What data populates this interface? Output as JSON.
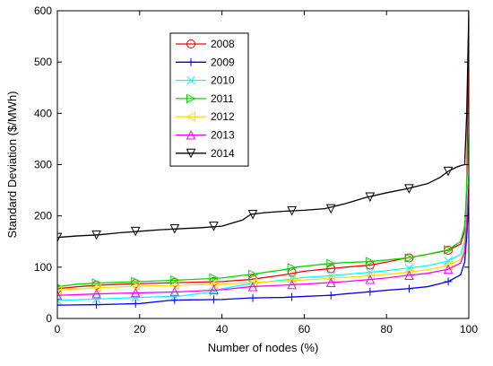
{
  "chart_data": {
    "type": "line",
    "title": "",
    "xlabel": "Number of nodes (%)",
    "ylabel": "Standard Deviation ($/MWh)",
    "xlim": [
      0,
      100
    ],
    "ylim": [
      0,
      600
    ],
    "xticks": [
      0,
      20,
      40,
      60,
      80,
      100
    ],
    "yticks": [
      0,
      100,
      200,
      300,
      400,
      500,
      600
    ],
    "grid": false,
    "legend_position": "top-left",
    "series": [
      {
        "name": "2008",
        "color": "#ff0000",
        "marker": "circle",
        "x": [
          0,
          5,
          10,
          20,
          30,
          40,
          47,
          55,
          60,
          66,
          70,
          76,
          80,
          85,
          90,
          95,
          98,
          99,
          99.5,
          100
        ],
        "y": [
          58,
          62,
          65,
          68,
          70,
          72,
          76,
          85,
          92,
          97,
          100,
          104,
          110,
          118,
          125,
          133,
          145,
          170,
          250,
          600
        ],
        "markers_x": [
          0,
          9.5,
          19,
          28.5,
          38,
          47.5,
          57,
          66.5,
          76,
          85.5,
          95
        ],
        "markers_y": [
          58,
          65,
          68,
          70,
          72,
          77,
          90,
          97,
          104,
          118,
          133
        ]
      },
      {
        "name": "2009",
        "color": "#0000ff",
        "marker": "plus",
        "x": [
          0,
          10,
          20,
          27,
          30,
          40,
          47,
          55,
          60,
          66,
          70,
          76,
          80,
          85,
          90,
          95,
          98,
          99,
          99.5,
          100
        ],
        "y": [
          26,
          27,
          29,
          35,
          36,
          37,
          40,
          41,
          43,
          45,
          48,
          52,
          55,
          58,
          62,
          72,
          85,
          110,
          160,
          230
        ],
        "markers_x": [
          0,
          9.5,
          19,
          28.5,
          38,
          47.5,
          57,
          66.5,
          76,
          85.5,
          95
        ],
        "markers_y": [
          26,
          27,
          29,
          36,
          37,
          40,
          42,
          45,
          52,
          58,
          72
        ]
      },
      {
        "name": "2010",
        "color": "#00ffff",
        "marker": "x",
        "x": [
          0,
          10,
          20,
          30,
          38,
          40,
          47,
          55,
          60,
          66,
          70,
          76,
          80,
          85,
          90,
          95,
          98,
          99,
          99.5,
          100
        ],
        "y": [
          35,
          38,
          41,
          44,
          52,
          58,
          68,
          75,
          80,
          83,
          86,
          90,
          93,
          98,
          103,
          112,
          125,
          150,
          210,
          280
        ],
        "markers_x": [
          0,
          9.5,
          19,
          28.5,
          38,
          47.5,
          57,
          66.5,
          76,
          85.5,
          95
        ],
        "markers_y": [
          35,
          38,
          41,
          44,
          52,
          68,
          78,
          83,
          90,
          98,
          112
        ]
      },
      {
        "name": "2011",
        "color": "#00dd00",
        "marker": "triangle-right",
        "x": [
          0,
          5,
          10,
          20,
          30,
          40,
          47,
          55,
          58,
          66,
          70,
          76,
          80,
          85,
          90,
          95,
          98,
          99,
          99.5,
          100
        ],
        "y": [
          62,
          67,
          69,
          72,
          75,
          79,
          86,
          95,
          100,
          107,
          109,
          111,
          114,
          118,
          125,
          134,
          150,
          180,
          260,
          360
        ],
        "markers_x": [
          0,
          9.5,
          19,
          28.5,
          38,
          47.5,
          57,
          66.5,
          76,
          85.5,
          95
        ],
        "markers_y": [
          62,
          69,
          72,
          75,
          79,
          86,
          99,
          107,
          111,
          118,
          134
        ]
      },
      {
        "name": "2012",
        "color": "#ffdd00",
        "marker": "triangle-left",
        "x": [
          0,
          10,
          20,
          30,
          40,
          47,
          55,
          60,
          66,
          70,
          76,
          80,
          85,
          90,
          95,
          98,
          99,
          99.5,
          100
        ],
        "y": [
          55,
          60,
          63,
          65,
          67,
          70,
          73,
          75,
          78,
          80,
          83,
          86,
          90,
          95,
          103,
          115,
          140,
          200,
          270
        ],
        "markers_x": [
          0,
          9.5,
          19,
          28.5,
          38,
          47.5,
          57,
          66.5,
          76,
          85.5,
          95
        ],
        "markers_y": [
          55,
          60,
          63,
          65,
          67,
          70,
          74,
          78,
          83,
          90,
          103
        ]
      },
      {
        "name": "2013",
        "color": "#ff00ff",
        "marker": "triangle-up",
        "x": [
          0,
          10,
          20,
          30,
          40,
          47,
          55,
          60,
          66,
          70,
          76,
          80,
          85,
          90,
          95,
          98,
          99,
          99.5,
          100
        ],
        "y": [
          45,
          48,
          50,
          52,
          56,
          62,
          65,
          67,
          70,
          72,
          76,
          79,
          84,
          88,
          96,
          108,
          130,
          190,
          260
        ],
        "markers_x": [
          0,
          9.5,
          19,
          28.5,
          38,
          47.5,
          57,
          66.5,
          76,
          85.5,
          95
        ],
        "markers_y": [
          45,
          48,
          50,
          52,
          56,
          62,
          66,
          70,
          76,
          84,
          96
        ]
      },
      {
        "name": "2014",
        "color": "#000000",
        "marker": "triangle-down",
        "x": [
          0,
          5,
          10,
          15,
          20,
          25,
          30,
          35,
          40,
          45,
          47,
          50,
          55,
          60,
          65,
          70,
          75,
          80,
          85,
          90,
          93,
          95,
          97,
          98,
          99,
          99.5,
          100
        ],
        "y": [
          158,
          161,
          163,
          167,
          170,
          173,
          175,
          177,
          180,
          192,
          203,
          206,
          209,
          211,
          214,
          224,
          236,
          245,
          253,
          263,
          275,
          287,
          295,
          298,
          300,
          400,
          600
        ],
        "markers_x": [
          0,
          9.5,
          19,
          28.5,
          38,
          47.5,
          57,
          66.5,
          76,
          85.5,
          95
        ],
        "markers_y": [
          158,
          163,
          170,
          175,
          180,
          203,
          210,
          214,
          237,
          253,
          287
        ]
      }
    ]
  }
}
